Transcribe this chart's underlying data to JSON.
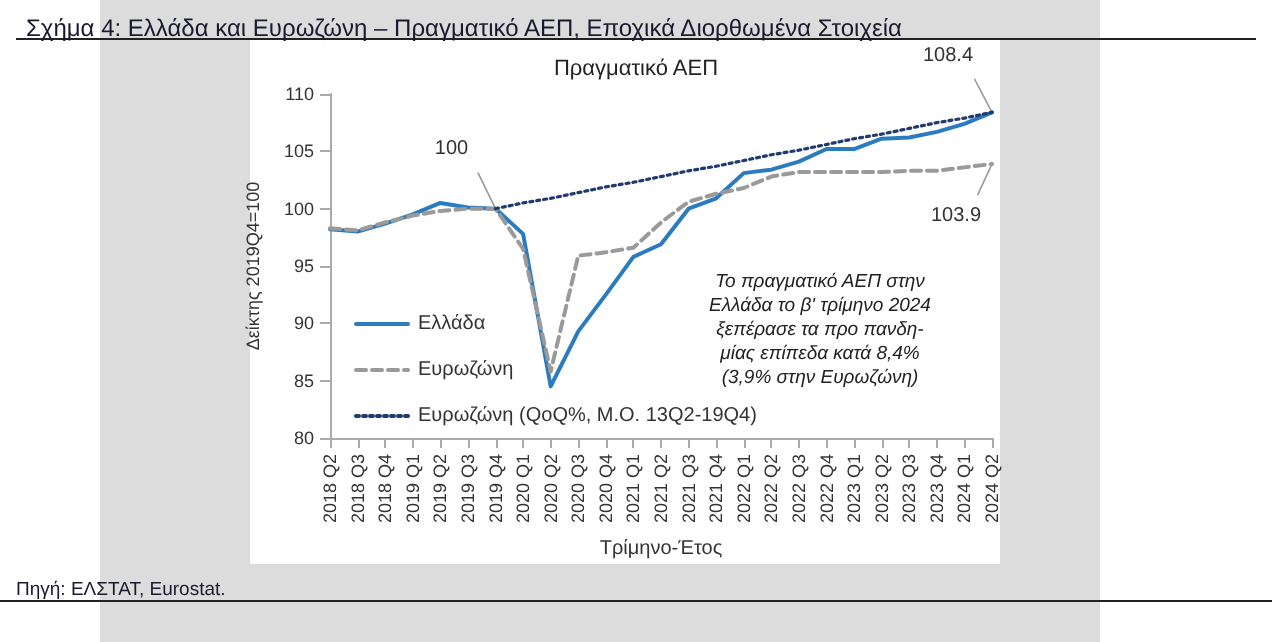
{
  "chart_data": {
    "type": "line",
    "title": "Σχήμα 4: Ελλάδα και Ευρωζώνη – Πραγματικό ΑΕΠ, Εποχικά Διορθωμένα Στοιχεία",
    "subtitle": "Πραγματικό ΑΕΠ",
    "xlabel": "Τρίμηνο-Έτος",
    "ylabel": "Δείκτης 2019Q4=100",
    "categories": [
      "2018 Q2",
      "2018 Q3",
      "2018 Q4",
      "2019 Q1",
      "2019 Q2",
      "2019 Q3",
      "2019 Q4",
      "2020 Q1",
      "2020 Q2",
      "2020 Q3",
      "2020 Q4",
      "2021 Q1",
      "2021 Q2",
      "2021 Q3",
      "2021 Q4",
      "2022 Q1",
      "2022 Q2",
      "2022 Q3",
      "2022 Q4",
      "2023 Q1",
      "2023 Q2",
      "2023 Q3",
      "2023 Q4",
      "2024 Q1",
      "2024 Q2"
    ],
    "series": [
      {
        "name": "Ελλάδα",
        "color": "#2b7bbf",
        "line_style": "solid",
        "values": [
          98.2,
          98.0,
          98.7,
          99.5,
          100.5,
          100.1,
          100.0,
          97.8,
          84.5,
          89.3,
          92.5,
          95.8,
          96.9,
          100.0,
          100.9,
          103.1,
          103.4,
          104.1,
          105.2,
          105.2,
          106.1,
          106.2,
          106.7,
          107.4,
          108.4
        ]
      },
      {
        "name": "Ευρωζώνη",
        "color": "#9a9a9a",
        "line_style": "dashed",
        "values": [
          98.3,
          98.1,
          98.8,
          99.4,
          99.8,
          100.0,
          100.0,
          96.5,
          85.8,
          95.9,
          96.2,
          96.6,
          98.8,
          100.6,
          101.3,
          101.8,
          102.8,
          103.2,
          103.2,
          103.2,
          103.2,
          103.3,
          103.3,
          103.6,
          103.9
        ]
      },
      {
        "name": "Ευρωζώνη (QoQ%, Μ.Ο. 13Q2-19Q4)",
        "color": "#1f3a6e",
        "line_style": "dotted",
        "values": [
          null,
          null,
          null,
          null,
          null,
          null,
          100.0,
          100.5,
          100.9,
          101.4,
          101.9,
          102.3,
          102.8,
          103.3,
          103.7,
          104.2,
          104.7,
          105.1,
          105.6,
          106.1,
          106.5,
          107.0,
          107.5,
          107.9,
          108.4
        ]
      }
    ],
    "ylim": [
      80,
      110
    ],
    "yticks": [
      80,
      85,
      90,
      95,
      100,
      105,
      110
    ],
    "grid": false,
    "legend": "left",
    "marker": "none",
    "annotations": [
      {
        "text": "100",
        "x": "2019 Q4",
        "y": 100
      },
      {
        "text": "108.4",
        "x": "2024 Q2",
        "y": 108.4
      },
      {
        "text": "103.9",
        "x": "2024 Q2",
        "y": 103.9
      },
      "Το πραγματικό ΑΕΠ στην\nΕλλάδα το β' τρίμηνο 2024\nξεπέρασε τα προ πανδη-\nμίας επίπεδα κατά 8,4%\n(3,9% στην Ευρωζώνη)",
      "Πηγή: ΕΛΣΤΑΤ, Eurostat."
    ]
  }
}
